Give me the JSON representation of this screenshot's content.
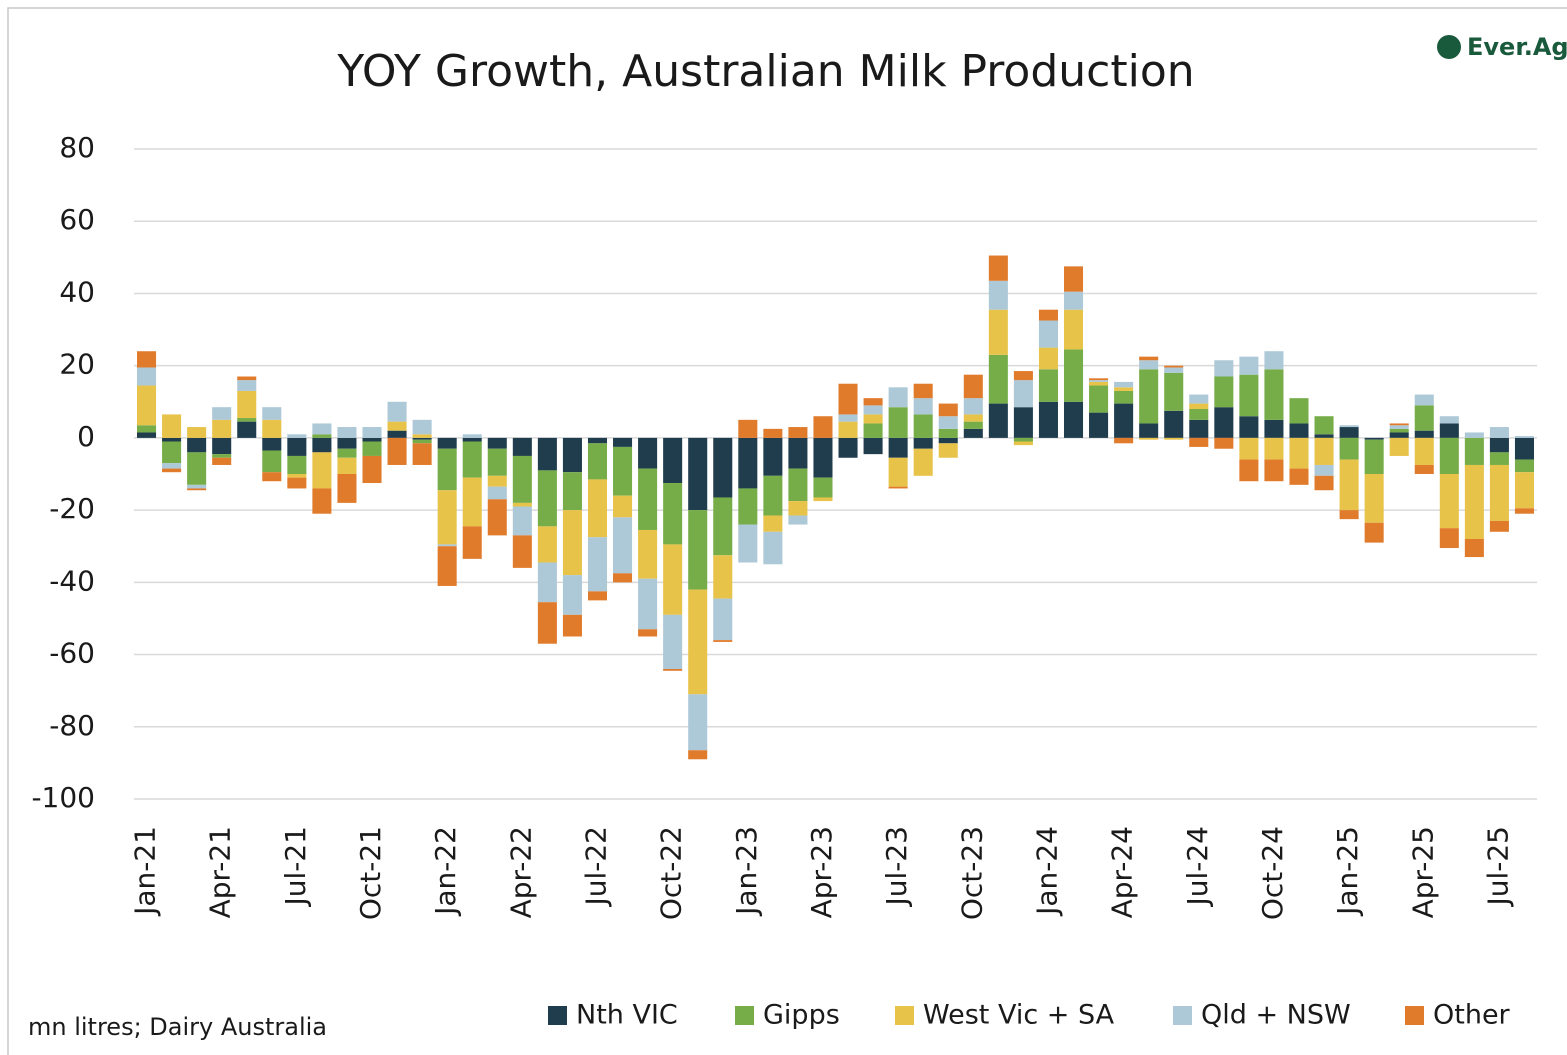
{
  "chart_data": {
    "type": "bar",
    "stacked": true,
    "title": "YOY Growth, Australian Milk Production",
    "source": "mn litres; Dairy Australia",
    "logo_text": "Ever.Ag",
    "categories": [
      "Jan-21",
      null,
      null,
      "Apr-21",
      null,
      null,
      "Jul-21",
      null,
      null,
      "Oct-21",
      null,
      null,
      "Jan-22",
      null,
      null,
      "Apr-22",
      null,
      null,
      "Jul-22",
      null,
      null,
      "Oct-22",
      null,
      null,
      "Jan-23",
      null,
      null,
      "Apr-23",
      null,
      null,
      "Jul-23",
      null,
      null,
      "Oct-23",
      null,
      null,
      "Jan-24",
      null,
      null,
      "Apr-24",
      null,
      null,
      "Jul-24",
      null,
      null,
      "Oct-24",
      null,
      null,
      "Jan-25",
      null,
      null,
      "Apr-25",
      null,
      null,
      "Jul-25",
      null
    ],
    "series": [
      {
        "name": "Nth VIC",
        "color": "#1f3d4d",
        "values": [
          1.5,
          -1,
          -4,
          -4.5,
          4.5,
          -3.5,
          -5,
          -4,
          -3,
          -1,
          2,
          -0.5,
          -3,
          -1,
          -3,
          -5,
          -9,
          -9.5,
          -1.5,
          -2.5,
          -8.5,
          -12.5,
          -20,
          -16.5,
          -14,
          -10.5,
          -8.5,
          -11,
          -5.5,
          -4.5,
          -5.5,
          -3,
          -1.5,
          2.5,
          9.5,
          8.5,
          10,
          10,
          7,
          9.5,
          4,
          7.5,
          5,
          8.5,
          6,
          5,
          4,
          1,
          3,
          -0.5,
          1.5,
          2,
          4,
          0,
          -4,
          -6
        ]
      },
      {
        "name": "Gipps",
        "color": "#76ad48",
        "values": [
          2,
          -6,
          -9,
          -1,
          1,
          -6,
          -5,
          1,
          -2.5,
          -4,
          0,
          -1,
          -11.5,
          -10,
          -7.5,
          -13,
          -15.5,
          -10.5,
          -10,
          -13.5,
          -17,
          -17,
          -22,
          -16,
          -10,
          -11,
          -9,
          -5.5,
          0,
          4,
          8.5,
          6.5,
          2.5,
          2,
          13.5,
          -1,
          9,
          14.5,
          7.5,
          3.5,
          15,
          10.5,
          3,
          8.5,
          11.5,
          14,
          7,
          5,
          -6,
          -9.5,
          1,
          7,
          -10,
          -7.5,
          -3.5,
          -3.5
        ]
      },
      {
        "name": "West Vic + SA",
        "color": "#e8c34a",
        "values": [
          11,
          6.5,
          3,
          5,
          7.5,
          5,
          -1,
          -10,
          -4.5,
          0,
          2.5,
          1,
          -15,
          -13.5,
          -3,
          -1,
          -10,
          -18,
          -16,
          -6,
          -13.5,
          -19.5,
          -29,
          -12,
          0,
          -4.5,
          -4,
          -1,
          4.5,
          2.5,
          -8,
          -7.5,
          -4,
          2,
          12.5,
          -1,
          6,
          11,
          1,
          1,
          -0.5,
          -0.5,
          1.5,
          0,
          -6,
          -6,
          -8.5,
          -7.5,
          -14,
          -13.5,
          -5,
          -7.5,
          -15,
          -20.5,
          -15.5,
          -10
        ]
      },
      {
        "name": "Qld + NSW",
        "color": "#adc8d6",
        "values": [
          5,
          -1.5,
          -1,
          3.5,
          3,
          3.5,
          1,
          3,
          3,
          3,
          5.5,
          4,
          -0.5,
          1,
          -3.5,
          -8,
          -11,
          -11,
          -15,
          -15.5,
          -14,
          -15,
          -15.5,
          -11.5,
          -10.5,
          -9,
          -2.5,
          0,
          2,
          2.5,
          5.5,
          4.5,
          3.5,
          4.5,
          8,
          7.5,
          7.5,
          5,
          0.5,
          1.5,
          2.5,
          1.5,
          2.5,
          4.5,
          5,
          5,
          0,
          -3,
          0.5,
          0,
          1,
          3,
          2,
          1.5,
          3,
          0.5
        ]
      },
      {
        "name": "Other",
        "color": "#e07b2c",
        "values": [
          4.5,
          -1,
          -0.5,
          -2,
          1,
          -2.5,
          -3,
          -7,
          -8,
          -7.5,
          -7.5,
          -6,
          -11,
          -9,
          -10,
          -9,
          -11.5,
          -6,
          -2.5,
          -2.5,
          -2,
          -0.5,
          -2.5,
          -0.5,
          5,
          2.5,
          3,
          6,
          8.5,
          2,
          -0.5,
          4,
          3.5,
          6.5,
          7,
          2.5,
          3,
          7,
          0.5,
          -1.5,
          1,
          0.5,
          -2.5,
          -3,
          -6,
          -6,
          -4.5,
          -4,
          -2.5,
          -5.5,
          0.5,
          -2.5,
          -5.5,
          -5,
          -3,
          -1.5
        ]
      }
    ],
    "ylim": [
      -100,
      80
    ],
    "yticks": [
      -100,
      -80,
      -60,
      -40,
      -20,
      0,
      20,
      40,
      60,
      80
    ],
    "grid": true,
    "legend": "bottom"
  }
}
